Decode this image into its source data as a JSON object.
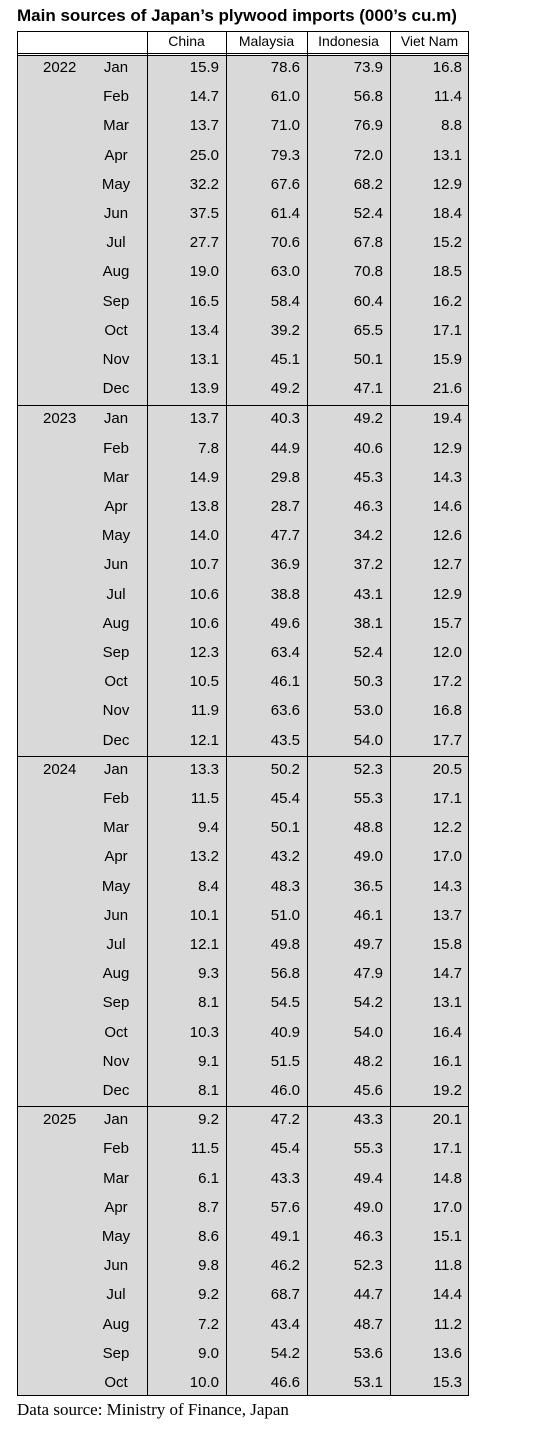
{
  "title": "Main sources of Japan’s plywood imports (000’s cu.m)",
  "columns": [
    "China",
    "Malaysia",
    "Indonesia",
    "Viet Nam"
  ],
  "groups": [
    {
      "year": "2022",
      "rows": [
        [
          "Jan",
          "15.9",
          "78.6",
          "73.9",
          "16.8"
        ],
        [
          "Feb",
          "14.7",
          "61.0",
          "56.8",
          "11.4"
        ],
        [
          "Mar",
          "13.7",
          "71.0",
          "76.9",
          "8.8"
        ],
        [
          "Apr",
          "25.0",
          "79.3",
          "72.0",
          "13.1"
        ],
        [
          "May",
          "32.2",
          "67.6",
          "68.2",
          "12.9"
        ],
        [
          "Jun",
          "37.5",
          "61.4",
          "52.4",
          "18.4"
        ],
        [
          "Jul",
          "27.7",
          "70.6",
          "67.8",
          "15.2"
        ],
        [
          "Aug",
          "19.0",
          "63.0",
          "70.8",
          "18.5"
        ],
        [
          "Sep",
          "16.5",
          "58.4",
          "60.4",
          "16.2"
        ],
        [
          "Oct",
          "13.4",
          "39.2",
          "65.5",
          "17.1"
        ],
        [
          "Nov",
          "13.1",
          "45.1",
          "50.1",
          "15.9"
        ],
        [
          "Dec",
          "13.9",
          "49.2",
          "47.1",
          "21.6"
        ]
      ]
    },
    {
      "year": "2023",
      "rows": [
        [
          "Jan",
          "13.7",
          "40.3",
          "49.2",
          "19.4"
        ],
        [
          "Feb",
          "7.8",
          "44.9",
          "40.6",
          "12.9"
        ],
        [
          "Mar",
          "14.9",
          "29.8",
          "45.3",
          "14.3"
        ],
        [
          "Apr",
          "13.8",
          "28.7",
          "46.3",
          "14.6"
        ],
        [
          "May",
          "14.0",
          "47.7",
          "34.2",
          "12.6"
        ],
        [
          "Jun",
          "10.7",
          "36.9",
          "37.2",
          "12.7"
        ],
        [
          "Jul",
          "10.6",
          "38.8",
          "43.1",
          "12.9"
        ],
        [
          "Aug",
          "10.6",
          "49.6",
          "38.1",
          "15.7"
        ],
        [
          "Sep",
          "12.3",
          "63.4",
          "52.4",
          "12.0"
        ],
        [
          "Oct",
          "10.5",
          "46.1",
          "50.3",
          "17.2"
        ],
        [
          "Nov",
          "11.9",
          "63.6",
          "53.0",
          "16.8"
        ],
        [
          "Dec",
          "12.1",
          "43.5",
          "54.0",
          "17.7"
        ]
      ]
    },
    {
      "year": "2024",
      "rows": [
        [
          "Jan",
          "13.3",
          "50.2",
          "52.3",
          "20.5"
        ],
        [
          "Feb",
          "11.5",
          "45.4",
          "55.3",
          "17.1"
        ],
        [
          "Mar",
          "9.4",
          "50.1",
          "48.8",
          "12.2"
        ],
        [
          "Apr",
          "13.2",
          "43.2",
          "49.0",
          "17.0"
        ],
        [
          "May",
          "8.4",
          "48.3",
          "36.5",
          "14.3"
        ],
        [
          "Jun",
          "10.1",
          "51.0",
          "46.1",
          "13.7"
        ],
        [
          "Jul",
          "12.1",
          "49.8",
          "49.7",
          "15.8"
        ],
        [
          "Aug",
          "9.3",
          "56.8",
          "47.9",
          "14.7"
        ],
        [
          "Sep",
          "8.1",
          "54.5",
          "54.2",
          "13.1"
        ],
        [
          "Oct",
          "10.3",
          "40.9",
          "54.0",
          "16.4"
        ],
        [
          "Nov",
          "9.1",
          "51.5",
          "48.2",
          "16.1"
        ],
        [
          "Dec",
          "8.1",
          "46.0",
          "45.6",
          "19.2"
        ]
      ]
    },
    {
      "year": "2025",
      "rows": [
        [
          "Jan",
          "9.2",
          "47.2",
          "43.3",
          "20.1"
        ],
        [
          "Feb",
          "11.5",
          "45.4",
          "55.3",
          "17.1"
        ],
        [
          "Mar",
          "6.1",
          "43.3",
          "49.4",
          "14.8"
        ],
        [
          "Apr",
          "8.7",
          "57.6",
          "49.0",
          "17.0"
        ],
        [
          "May",
          "8.6",
          "49.1",
          "46.3",
          "15.1"
        ],
        [
          "Jun",
          "9.8",
          "46.2",
          "52.3",
          "11.8"
        ],
        [
          "Jul",
          "9.2",
          "68.7",
          "44.7",
          "14.4"
        ],
        [
          "Aug",
          "7.2",
          "43.4",
          "48.7",
          "11.2"
        ],
        [
          "Sep",
          "9.0",
          "54.2",
          "53.6",
          "13.6"
        ],
        [
          "Oct",
          "10.0",
          "46.6",
          "53.1",
          "15.3"
        ]
      ]
    }
  ],
  "source": "Data source: Ministry of Finance, Japan"
}
